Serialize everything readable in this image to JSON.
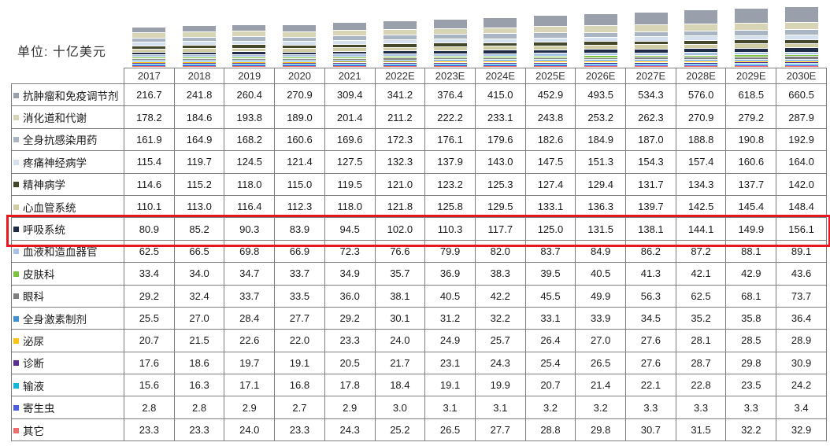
{
  "unit_label": "单位: 十亿美元",
  "highlight": {
    "row": "呼吸系统",
    "color": "#e8171d"
  },
  "chart_data": {
    "type": "bar",
    "stacked": true,
    "title": "",
    "xlabel": "",
    "ylabel": "十亿美元",
    "grid": false,
    "legend_position": "table-row-labels",
    "x": [
      "2017",
      "2018",
      "2019",
      "2020",
      "2021",
      "2022E",
      "2023E",
      "2024E",
      "2025E",
      "2026E",
      "2027E",
      "2028E",
      "2029E",
      "2030E"
    ],
    "series": [
      {
        "name": "抗肿瘤和免疫调节剂",
        "color": "#9aa0ab",
        "highlighted": false,
        "values": [
          216.7,
          241.8,
          260.4,
          270.9,
          309.4,
          341.2,
          376.4,
          415.0,
          452.9,
          493.5,
          534.3,
          576.0,
          618.5,
          660.5
        ]
      },
      {
        "name": "消化道和代谢",
        "color": "#d7d5b5",
        "highlighted": false,
        "values": [
          178.2,
          184.6,
          193.8,
          189.0,
          201.4,
          211.2,
          222.2,
          233.1,
          243.8,
          253.2,
          262.3,
          270.9,
          279.2,
          287.9
        ]
      },
      {
        "name": "全身抗感染用药",
        "color": "#a9b5c3",
        "highlighted": false,
        "values": [
          161.9,
          164.9,
          168.2,
          160.6,
          169.6,
          172.3,
          176.1,
          179.6,
          182.6,
          184.9,
          187.0,
          188.8,
          190.8,
          192.9
        ]
      },
      {
        "name": "疼痛神经病学",
        "color": "#d5e0ee",
        "highlighted": false,
        "values": [
          115.4,
          119.7,
          124.5,
          121.4,
          127.5,
          132.3,
          137.9,
          143.0,
          147.5,
          151.3,
          154.3,
          157.4,
          160.6,
          164.0
        ]
      },
      {
        "name": "精神病学",
        "color": "#45472b",
        "highlighted": false,
        "values": [
          114.6,
          115.2,
          118.0,
          115.0,
          119.5,
          121.0,
          123.2,
          125.3,
          127.4,
          129.4,
          131.7,
          134.3,
          137.7,
          142.0
        ]
      },
      {
        "name": "心血管系统",
        "color": "#d0cda5",
        "highlighted": false,
        "values": [
          110.1,
          113.0,
          116.4,
          112.3,
          118.0,
          121.8,
          125.8,
          129.5,
          133.1,
          136.3,
          139.7,
          142.5,
          145.4,
          148.4
        ]
      },
      {
        "name": "呼吸系统",
        "color": "#1f2b47",
        "highlighted": true,
        "values": [
          80.9,
          85.2,
          90.3,
          83.9,
          94.5,
          102.0,
          110.3,
          117.7,
          125.0,
          131.5,
          138.1,
          144.1,
          149.9,
          156.1
        ]
      },
      {
        "name": "血液和造血器官",
        "color": "#a9c3e4",
        "highlighted": false,
        "values": [
          62.5,
          66.5,
          69.8,
          66.9,
          72.3,
          76.6,
          79.9,
          82.0,
          83.7,
          84.9,
          86.2,
          87.2,
          88.1,
          89.1
        ]
      },
      {
        "name": "皮肤科",
        "color": "#7cc142",
        "highlighted": false,
        "values": [
          33.4,
          34.0,
          34.7,
          33.7,
          34.9,
          35.7,
          36.9,
          38.3,
          39.5,
          40.5,
          41.3,
          42.1,
          42.9,
          43.6
        ]
      },
      {
        "name": "眼科",
        "color": "#7f7f7f",
        "highlighted": false,
        "values": [
          29.2,
          32.4,
          33.7,
          33.5,
          36.0,
          38.1,
          40.5,
          42.2,
          45.5,
          49.9,
          56.3,
          62.5,
          68.1,
          73.7
        ]
      },
      {
        "name": "全身激素制剂",
        "color": "#4090d8",
        "highlighted": false,
        "values": [
          25.5,
          27.0,
          28.4,
          27.7,
          29.2,
          30.1,
          31.2,
          32.2,
          33.1,
          33.9,
          34.5,
          35.2,
          35.8,
          36.4
        ]
      },
      {
        "name": "泌尿",
        "color": "#fec310",
        "highlighted": false,
        "values": [
          20.7,
          21.5,
          22.6,
          22.0,
          23.3,
          24.0,
          24.9,
          25.7,
          26.4,
          27.0,
          27.6,
          28.1,
          28.5,
          28.9
        ]
      },
      {
        "name": "诊断",
        "color": "#5b2f91",
        "highlighted": false,
        "values": [
          17.6,
          18.6,
          19.7,
          19.1,
          20.5,
          21.7,
          23.1,
          24.3,
          25.4,
          26.5,
          27.6,
          28.7,
          29.8,
          30.9
        ]
      },
      {
        "name": "输液",
        "color": "#12b5e0",
        "highlighted": false,
        "values": [
          15.6,
          16.3,
          17.1,
          16.8,
          17.8,
          18.4,
          19.1,
          19.9,
          20.7,
          21.4,
          22.1,
          22.8,
          23.5,
          24.2
        ]
      },
      {
        "name": "寄生虫",
        "color": "#4d5fe0",
        "highlighted": false,
        "values": [
          2.8,
          2.8,
          2.9,
          2.7,
          2.9,
          3.0,
          3.1,
          3.1,
          3.2,
          3.2,
          3.3,
          3.3,
          3.3,
          3.4
        ]
      },
      {
        "name": "其它",
        "color": "#ef6d6d",
        "highlighted": false,
        "values": [
          23.3,
          23.3,
          24.0,
          23.3,
          24.3,
          25.2,
          26.5,
          27.7,
          28.8,
          29.8,
          30.7,
          31.5,
          32.2,
          32.9
        ]
      }
    ]
  }
}
